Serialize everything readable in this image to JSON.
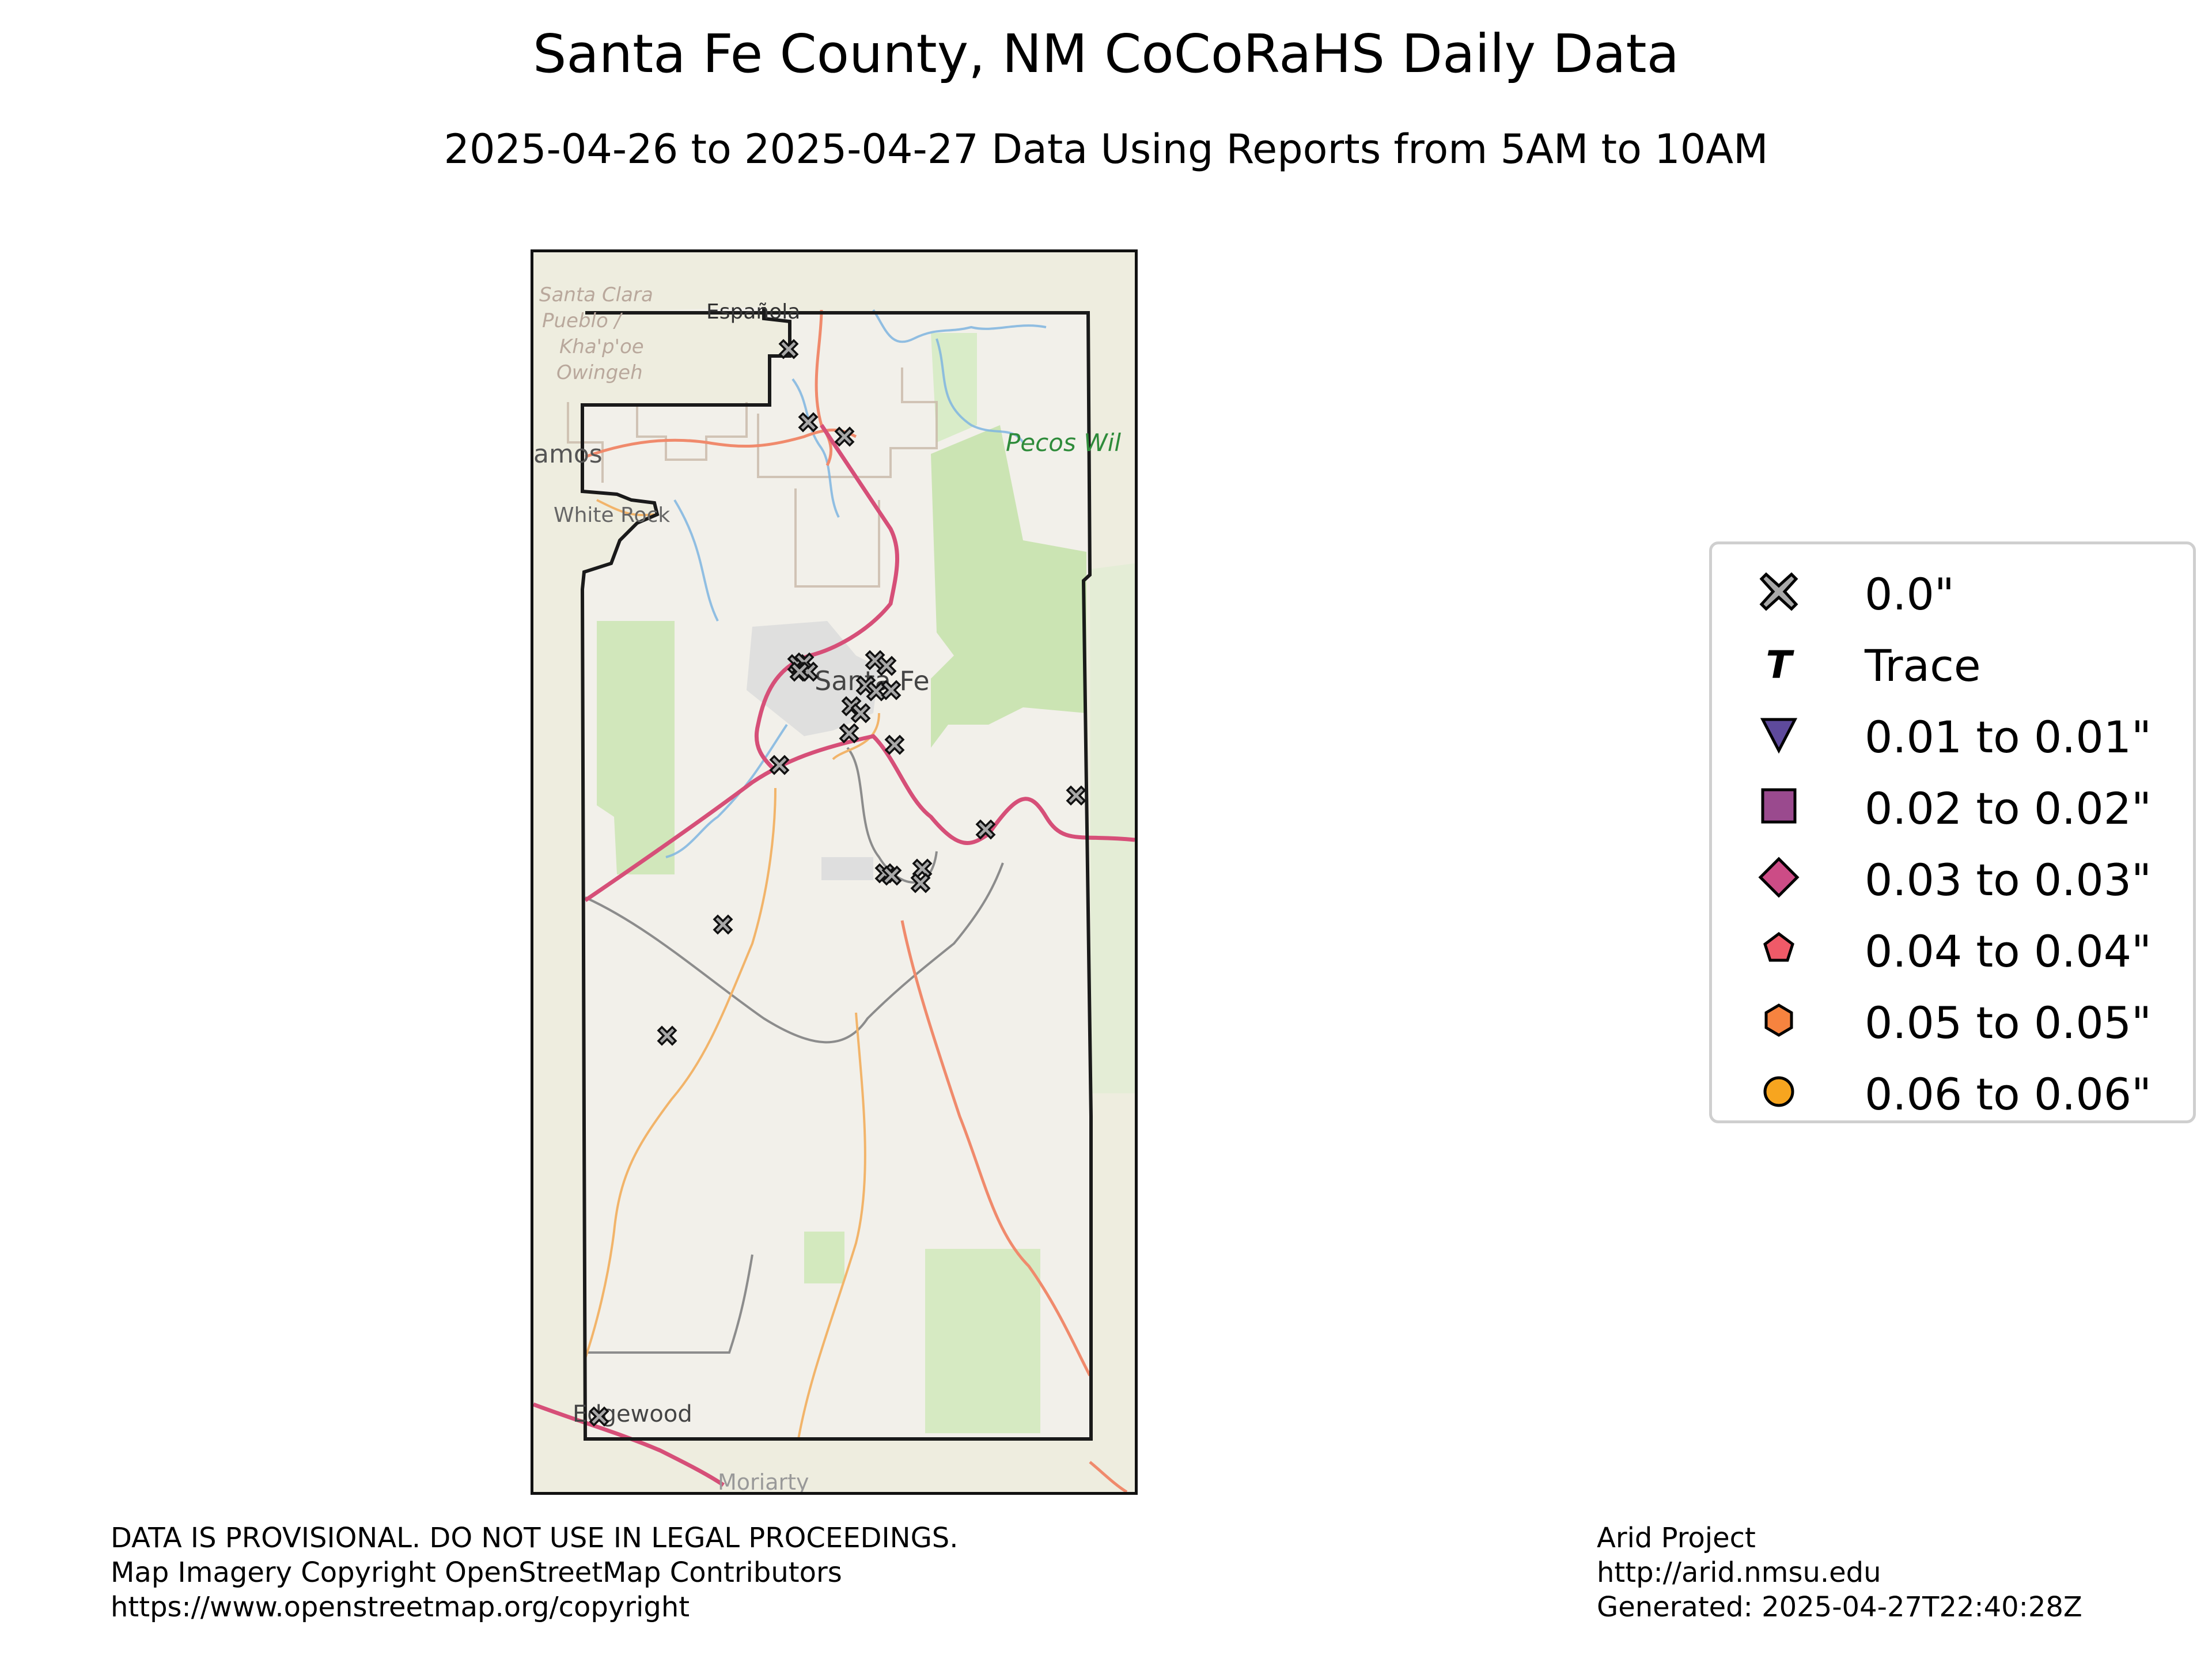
{
  "title": "Santa Fe County, NM CoCoRaHS Daily Data",
  "subtitle": "2025-04-26 to 2025-04-27 Data Using Reports from 5AM to 10AM",
  "map": {
    "place_labels": {
      "espanola": "Española",
      "santa_clara": [
        "Santa Clara",
        "Pueblo /",
        "Kha'p'oe",
        "Owingeh"
      ],
      "los_alamos": "amos",
      "white_rock": "White Rock",
      "pecos": "Pecos Wil",
      "santa_fe": "Santa Fe",
      "edgewood": "Edgewood",
      "moriarty": "Moriarty"
    },
    "station_count": 26,
    "station_category": "0.0\"",
    "colors": {
      "zero_marker": "#a8a8a8",
      "county_border": "#1a1a1a",
      "highway": "#d64f78",
      "secondary_road": "#f08a6c",
      "minor_road": "#f2b46a",
      "forest": "#c9e4b0",
      "water": "#7fb5e0"
    }
  },
  "legend": {
    "items": [
      {
        "label": "0.0\"",
        "symbol": "x-marker-icon",
        "color": "#a8a8a8"
      },
      {
        "label": "Trace",
        "symbol": "t-marker-icon",
        "color": "#000000"
      },
      {
        "label": "0.01 to 0.01\"",
        "symbol": "triangle-down-icon",
        "color": "#5e4a9c"
      },
      {
        "label": "0.02 to 0.02\"",
        "symbol": "square-icon",
        "color": "#9a4a8e"
      },
      {
        "label": "0.03 to 0.03\"",
        "symbol": "diamond-icon",
        "color": "#cc4c86"
      },
      {
        "label": "0.04 to 0.04\"",
        "symbol": "pentagon-icon",
        "color": "#ef5a68"
      },
      {
        "label": "0.05 to 0.05\"",
        "symbol": "hexagon-icon",
        "color": "#f6833f"
      },
      {
        "label": "0.06 to 0.06\"",
        "symbol": "circle-icon",
        "color": "#f7a51f"
      }
    ]
  },
  "footer": {
    "left": [
      "DATA IS PROVISIONAL. DO NOT USE IN LEGAL PROCEEDINGS.",
      "Map Imagery Copyright OpenStreetMap Contributors",
      "https://www.openstreetmap.org/copyright"
    ],
    "right": [
      "Arid Project",
      "http://arid.nmsu.edu",
      "Generated: 2025-04-27T22:40:28Z"
    ]
  }
}
